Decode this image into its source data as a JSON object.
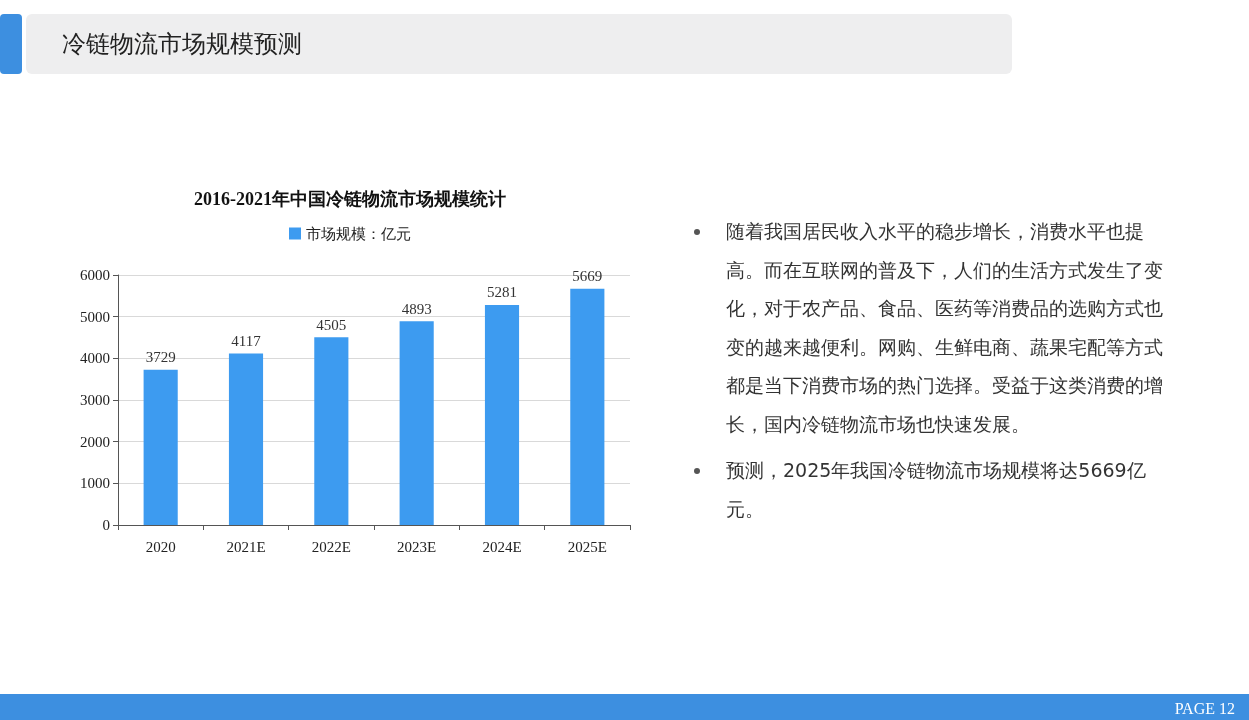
{
  "chart_data": {
    "type": "bar",
    "title": "冷链物流市场规模预测",
    "subtitle": "2016-2021年中国冷链物流市场规模统计",
    "categories": [
      "2020",
      "2021E",
      "2022E",
      "2023E",
      "2024E",
      "2025E"
    ],
    "series": [
      {
        "name": "市场规模：亿元",
        "color": "#3d9bf0",
        "values": [
          3729,
          4117,
          4505,
          4893,
          5281,
          5669
        ]
      }
    ],
    "ylim": [
      0,
      6000
    ],
    "yticks": [
      0,
      1000,
      2000,
      3000,
      4000,
      5000,
      6000
    ],
    "grid": "y",
    "legend": "top",
    "data_labels": true,
    "annotations": [
      "随着我国居民收入水平的稳步增长，消费水平也提高。而在互联网的普及下，人们的生活方式发生了变化，对于农产品、食品、医药等消费品的选购方式也变的越来越便利。网购、生鲜电商、蔬果宅配等方式都是当下消费市场的热门选择。受益于这类消费的增长，国内冷链物流市场也快速发展。",
      "预测，2025年我国冷链物流市场规模将达5669亿元。",
      "PAGE 12"
    ]
  }
}
